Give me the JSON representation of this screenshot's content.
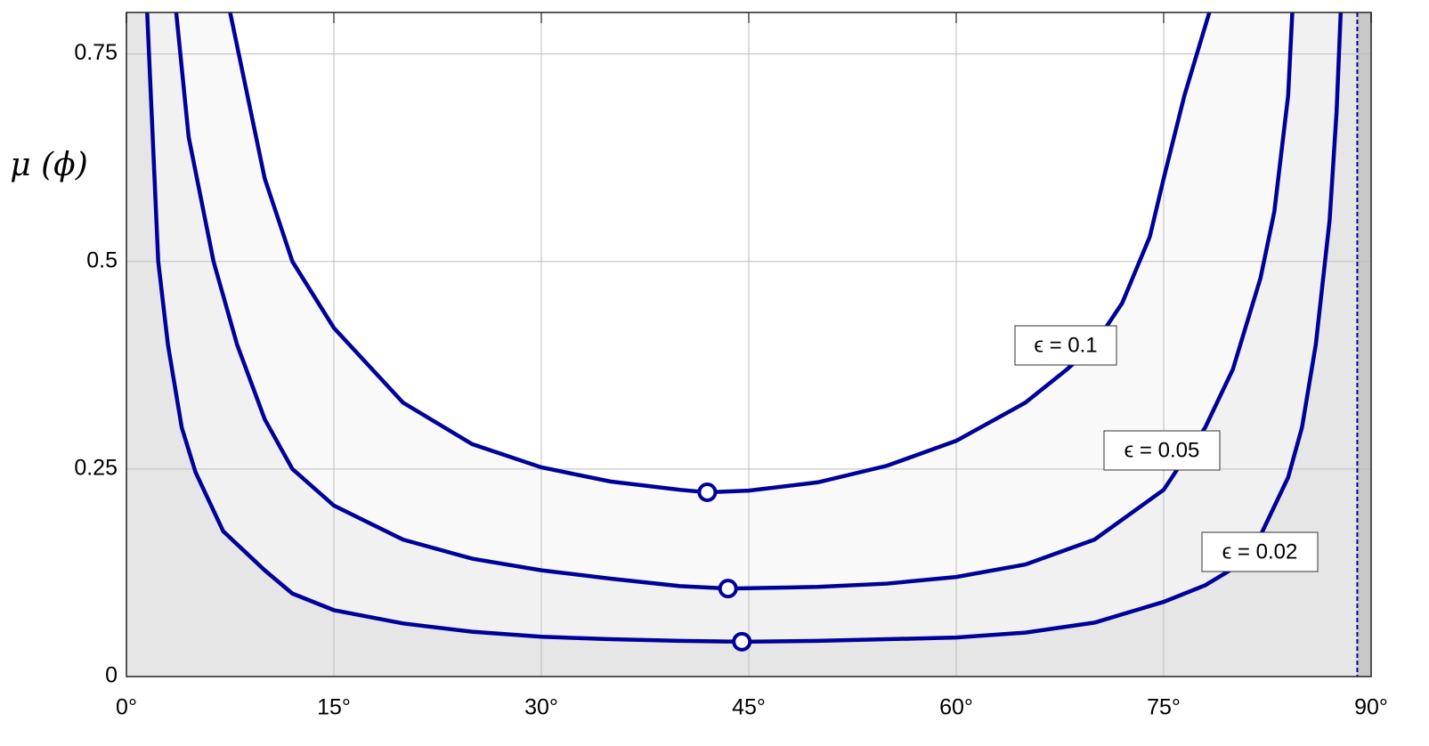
{
  "chart_data": {
    "type": "line",
    "y_label": "μ (ϕ)",
    "xlim": [
      0,
      90
    ],
    "ylim": [
      0,
      0.8
    ],
    "xticks": [
      {
        "value": 0,
        "label": "0°"
      },
      {
        "value": 15,
        "label": "15°"
      },
      {
        "value": 30,
        "label": "30°"
      },
      {
        "value": 45,
        "label": "45°"
      },
      {
        "value": 60,
        "label": "60°"
      },
      {
        "value": 75,
        "label": "75°"
      },
      {
        "value": 90,
        "label": "90°"
      }
    ],
    "yticks": [
      0,
      0.25,
      0.5,
      0.75
    ],
    "grid": true,
    "boundary_x": 89,
    "series": [
      {
        "name": "ϵ = 0.02",
        "color": "#000099",
        "fill": "#f1f1f1",
        "x": [
          1.5,
          2.3,
          3,
          4,
          5,
          7,
          10,
          12,
          15,
          20,
          25,
          30,
          35,
          40,
          44.5,
          50,
          55,
          60,
          65,
          70,
          75,
          78,
          80,
          82,
          84,
          85,
          86,
          87,
          87.5,
          87.8
        ],
        "values": [
          0.8,
          0.5,
          0.4,
          0.3,
          0.246,
          0.175,
          0.128,
          0.1,
          0.08,
          0.064,
          0.054,
          0.048,
          0.045,
          0.043,
          0.042,
          0.043,
          0.045,
          0.047,
          0.053,
          0.065,
          0.09,
          0.11,
          0.13,
          0.17,
          0.24,
          0.3,
          0.4,
          0.55,
          0.68,
          0.8
        ],
        "min_x": 44.5,
        "min_value": 0.042
      },
      {
        "name": "ϵ = 0.05",
        "color": "#000099",
        "fill": "#f9f9f9",
        "x": [
          3.6,
          4.5,
          6.3,
          8,
          10,
          12,
          15,
          20,
          25,
          30,
          35,
          40,
          43.5,
          50,
          55,
          60,
          65,
          70,
          75,
          78,
          80,
          82,
          83,
          84,
          84.3
        ],
        "values": [
          0.8,
          0.65,
          0.5,
          0.4,
          0.31,
          0.25,
          0.206,
          0.165,
          0.142,
          0.128,
          0.118,
          0.109,
          0.106,
          0.108,
          0.112,
          0.12,
          0.135,
          0.165,
          0.225,
          0.3,
          0.37,
          0.48,
          0.56,
          0.7,
          0.8
        ],
        "min_x": 43.5,
        "min_value": 0.106
      },
      {
        "name": "ϵ = 0.1",
        "color": "#000099",
        "fill": "#ffffff",
        "x": [
          7.5,
          9,
          10,
          12,
          15,
          20,
          25,
          30,
          35,
          40,
          42,
          45,
          50,
          55,
          60,
          65,
          68,
          70,
          72,
          74,
          75,
          76.5,
          78.3
        ],
        "values": [
          0.8,
          0.68,
          0.6,
          0.5,
          0.42,
          0.33,
          0.28,
          0.252,
          0.235,
          0.225,
          0.222,
          0.224,
          0.234,
          0.254,
          0.284,
          0.33,
          0.37,
          0.4,
          0.45,
          0.53,
          0.6,
          0.7,
          0.8
        ],
        "min_x": 42,
        "min_value": 0.222
      }
    ]
  }
}
